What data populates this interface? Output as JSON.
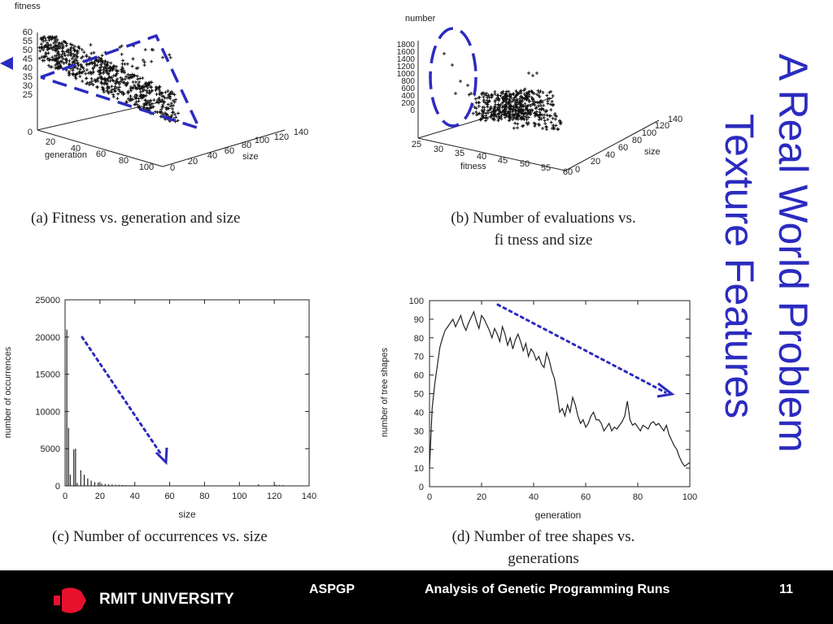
{
  "slide": {
    "title_line1": "A Real World Problem",
    "title_line2": "Texture Features",
    "title_color": "#2b2bbf"
  },
  "footer": {
    "university": "RMIT UNIVERSITY",
    "course": "ASPGP",
    "subject": "Analysis of Genetic Programming Runs",
    "page": "11"
  },
  "captions": {
    "a": "(a) Fitness vs. generation and size",
    "b_line1": "(b) Number of evaluations vs.",
    "b_line2": "fi tness and size",
    "c": "(c) Number of occurrences vs. size",
    "d_line1": "(d) Number of tree shapes vs.",
    "d_line2": "generations"
  },
  "chart_data": [
    {
      "id": "a",
      "type": "scatter",
      "projection": "3d",
      "zlabel": "fitness",
      "xlabel": "generation",
      "ylabel": "size",
      "z_ticks": [
        "60",
        "55",
        "50",
        "45",
        "40",
        "35",
        "30",
        "25",
        "0"
      ],
      "x_ticks": [
        "20",
        "40",
        "60",
        "80",
        "100"
      ],
      "y_ticks": [
        "0",
        "20",
        "40",
        "60",
        "80",
        "100",
        "120",
        "140"
      ],
      "annotation": "dashed triangle highlighting dense region"
    },
    {
      "id": "b",
      "type": "scatter",
      "projection": "3d",
      "zlabel": "number",
      "xlabel": "fitness",
      "ylabel": "size",
      "z_ticks": [
        "1800",
        "1600",
        "1400",
        "1200",
        "1000",
        "800",
        "600",
        "400",
        "200",
        "0"
      ],
      "x_ticks": [
        "25",
        "30",
        "35",
        "40",
        "45",
        "50",
        "55",
        "60"
      ],
      "y_ticks": [
        "0",
        "20",
        "40",
        "60",
        "80",
        "100",
        "120",
        "140"
      ],
      "annotation": "dashed ellipse around outliers"
    },
    {
      "id": "c",
      "type": "bar",
      "xlabel": "size",
      "ylabel": "number of occurrences",
      "xlim": [
        0,
        140
      ],
      "ylim": [
        0,
        25000
      ],
      "x_ticks": [
        "0",
        "20",
        "40",
        "60",
        "80",
        "100",
        "120",
        "140"
      ],
      "y_ticks": [
        "0",
        "5000",
        "10000",
        "15000",
        "20000",
        "25000"
      ],
      "x": [
        1,
        2,
        3,
        5,
        6,
        7,
        9,
        11,
        13,
        15,
        17,
        19,
        21,
        23,
        25,
        27,
        29,
        31,
        33,
        35,
        37,
        39,
        41,
        43,
        45,
        47,
        49,
        51,
        53,
        55,
        57,
        59,
        61,
        111,
        121,
        123,
        125
      ],
      "values": [
        21000,
        7800,
        1500,
        4900,
        5000,
        400,
        2100,
        1500,
        1000,
        700,
        500,
        450,
        300,
        250,
        200,
        180,
        150,
        130,
        120,
        100,
        90,
        80,
        70,
        60,
        55,
        50,
        45,
        40,
        35,
        30,
        28,
        25,
        20,
        200,
        150,
        120,
        100
      ],
      "annotation": "dotted arrow pointing down"
    },
    {
      "id": "d",
      "type": "line",
      "xlabel": "generation",
      "ylabel": "number of tree shapes",
      "xlim": [
        0,
        100
      ],
      "ylim": [
        0,
        100
      ],
      "x_ticks": [
        "0",
        "20",
        "40",
        "60",
        "80",
        "100"
      ],
      "y_ticks": [
        "0",
        "10",
        "20",
        "30",
        "40",
        "50",
        "60",
        "70",
        "80",
        "90",
        "100"
      ],
      "x": [
        0,
        1,
        2,
        3,
        4,
        5,
        6,
        7,
        8,
        9,
        10,
        11,
        12,
        13,
        14,
        15,
        16,
        17,
        18,
        19,
        20,
        21,
        22,
        23,
        24,
        25,
        26,
        27,
        28,
        29,
        30,
        31,
        32,
        33,
        34,
        35,
        36,
        37,
        38,
        39,
        40,
        41,
        42,
        43,
        44,
        45,
        46,
        47,
        48,
        49,
        50,
        51,
        52,
        53,
        54,
        55,
        56,
        57,
        58,
        59,
        60,
        61,
        62,
        63,
        64,
        65,
        66,
        67,
        68,
        69,
        70,
        71,
        72,
        73,
        74,
        75,
        76,
        77,
        78,
        79,
        80,
        81,
        82,
        83,
        84,
        85,
        86,
        87,
        88,
        89,
        90,
        91,
        92,
        93,
        94,
        95,
        96,
        97,
        98,
        99,
        100
      ],
      "values": [
        10,
        42,
        55,
        65,
        75,
        80,
        84,
        86,
        88,
        90,
        86,
        89,
        92,
        87,
        84,
        88,
        91,
        94,
        89,
        85,
        92,
        90,
        87,
        84,
        80,
        85,
        82,
        78,
        86,
        82,
        76,
        80,
        74,
        79,
        82,
        78,
        73,
        77,
        70,
        74,
        72,
        68,
        70,
        66,
        64,
        72,
        68,
        62,
        58,
        50,
        40,
        42,
        38,
        44,
        40,
        48,
        44,
        38,
        34,
        36,
        32,
        34,
        38,
        40,
        36,
        36,
        34,
        30,
        32,
        34,
        30,
        32,
        31,
        33,
        35,
        38,
        46,
        36,
        33,
        34,
        32,
        30,
        33,
        32,
        31,
        34,
        35,
        33,
        34,
        32,
        30,
        33,
        28,
        25,
        22,
        20,
        16,
        13,
        11,
        12,
        13
      ],
      "annotation": "dotted arrow pointing down-right"
    }
  ]
}
